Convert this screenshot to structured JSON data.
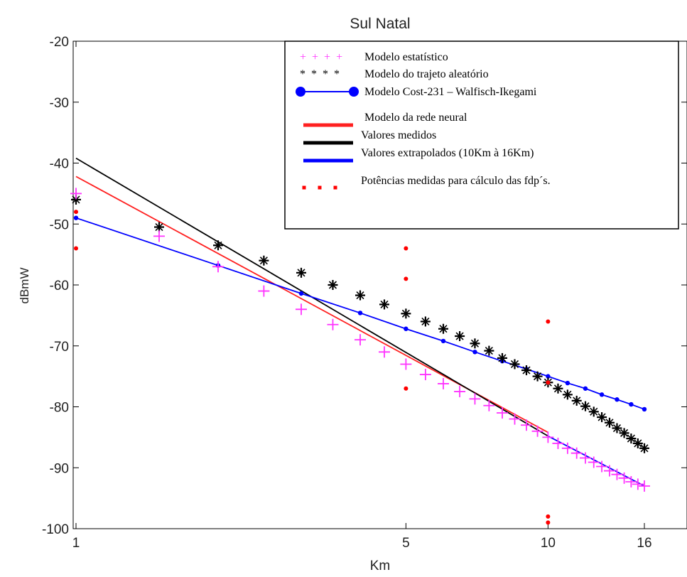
{
  "chart_data": {
    "type": "line",
    "title": "Sul Natal",
    "xlabel": "Km",
    "ylabel": "dBmW",
    "x_scale": "log",
    "xlim": [
      1,
      16
    ],
    "ylim": [
      -100,
      -20
    ],
    "x_ticks": [
      1,
      5,
      10,
      16
    ],
    "x_tick_labels": [
      "1",
      "5",
      "10",
      "16"
    ],
    "y_ticks": [
      -20,
      -30,
      -40,
      -50,
      -60,
      -70,
      -80,
      -90,
      -100
    ],
    "y_tick_labels": [
      "-20",
      "-30",
      "-40",
      "-50",
      "-60",
      "-70",
      "-80",
      "-90",
      "-100"
    ],
    "grid": false,
    "legend_position": "top-right",
    "legend": [
      {
        "name": "Modelo estatístico",
        "symbol": "+ + + +"
      },
      {
        "name": "Modelo do trajeto aleatório",
        "symbol": "* * * *"
      },
      {
        "name": "Modelo Cost-231 – Walfisch-Ikegami"
      },
      {
        "name": "Modelo da rede neural"
      },
      {
        "name": "Valores medidos"
      },
      {
        "name": "Valores extrapolados (10Km à 16Km)"
      },
      {
        "name": "Potências medidas para cálculo das fdp´s."
      }
    ],
    "series": [
      {
        "name": "Modelo estatístico",
        "style": "plus",
        "color": "#ff33ff",
        "x": [
          1,
          1.5,
          2,
          2.5,
          3,
          3.5,
          4,
          4.5,
          5,
          5.5,
          6,
          6.5,
          7,
          7.5,
          8,
          8.5,
          9,
          9.5,
          10,
          10.5,
          11,
          11.5,
          12,
          12.5,
          13,
          13.5,
          14,
          14.5,
          15,
          15.5,
          16
        ],
        "y": [
          -45,
          -52,
          -57,
          -61,
          -64,
          -66.5,
          -69,
          -71,
          -73,
          -74.7,
          -76.2,
          -77.5,
          -78.7,
          -79.8,
          -81,
          -82,
          -83,
          -84,
          -85,
          -86,
          -86.8,
          -87.6,
          -88.4,
          -89.1,
          -89.8,
          -90.5,
          -91.1,
          -91.7,
          -92.3,
          -92.7,
          -93
        ]
      },
      {
        "name": "Modelo do trajeto aleatório",
        "style": "star",
        "color": "#000000",
        "x": [
          1,
          1.5,
          2,
          2.5,
          3,
          3.5,
          4,
          4.5,
          5,
          5.5,
          6,
          6.5,
          7,
          7.5,
          8,
          8.5,
          9,
          9.5,
          10,
          10.5,
          11,
          11.5,
          12,
          12.5,
          13,
          13.5,
          14,
          14.5,
          15,
          15.5,
          16
        ],
        "y": [
          -46,
          -50.5,
          -53.5,
          -56,
          -58,
          -60,
          -61.7,
          -63.2,
          -64.7,
          -66,
          -67.2,
          -68.4,
          -69.6,
          -70.8,
          -72,
          -73,
          -74,
          -75,
          -76,
          -77,
          -78,
          -79,
          -79.9,
          -80.8,
          -81.7,
          -82.6,
          -83.5,
          -84.3,
          -85.2,
          -86,
          -86.8
        ]
      },
      {
        "name": "Modelo Cost-231 – Walfisch-Ikegami",
        "style": "line-dots",
        "color": "#0000ff",
        "x": [
          1,
          2,
          3,
          4,
          5,
          6,
          7,
          8,
          9,
          10,
          11,
          12,
          13,
          14,
          15,
          16
        ],
        "y": [
          -49,
          -56.8,
          -61.4,
          -64.6,
          -67.2,
          -69.2,
          -71,
          -72.5,
          -73.8,
          -75,
          -76.1,
          -77,
          -78,
          -78.8,
          -79.6,
          -80.4
        ]
      },
      {
        "name": "Modelo da rede neural",
        "style": "line",
        "color": "#ff2020",
        "x": [
          1,
          10
        ],
        "y": [
          -42.2,
          -84.2
        ]
      },
      {
        "name": "Valores medidos",
        "style": "line",
        "color": "#000000",
        "x": [
          1,
          10
        ],
        "y": [
          -39.2,
          -84.8
        ]
      },
      {
        "name": "Valores extrapolados (10Km à 16Km)",
        "style": "line",
        "color": "#0000ff",
        "x": [
          10,
          16
        ],
        "y": [
          -84.8,
          -93
        ]
      },
      {
        "name": "Potências medidas para cálculo das fdp´s.",
        "style": "dots",
        "color": "#ff0000",
        "x": [
          1,
          1,
          5,
          5,
          5,
          10,
          10,
          10,
          10
        ],
        "y": [
          -48,
          -54,
          -54,
          -59,
          -77,
          -66,
          -76,
          -98,
          -99
        ]
      }
    ]
  }
}
